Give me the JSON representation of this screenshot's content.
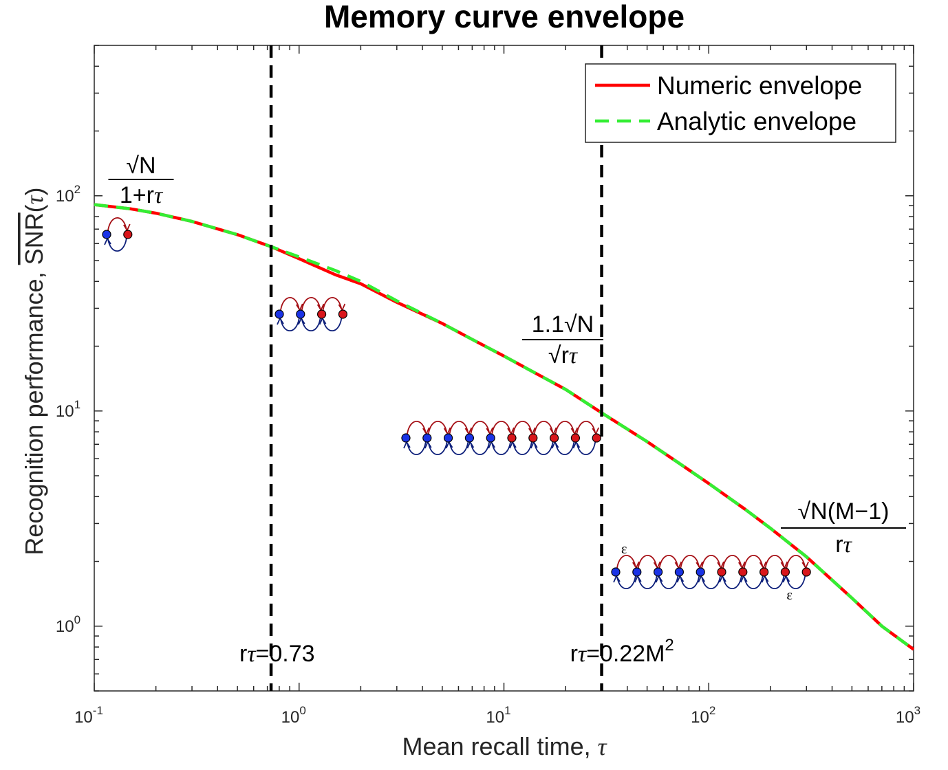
{
  "colors": {
    "numeric": "#ff0000",
    "analytic": "#33ee33",
    "threshold": "#000000",
    "state_plus": "#1a33e6",
    "state_minus": "#d9161b",
    "arrow_up": "#a50f15",
    "arrow_down": "#0d1f7a"
  },
  "chart_data": {
    "type": "line",
    "title": "Memory curve envelope",
    "xlabel": "Mean recall time, τ",
    "ylabel": "Recognition performance, SNR(τ)",
    "xscale": "log",
    "yscale": "log",
    "xlim": [
      0.1,
      1000
    ],
    "ylim": [
      0.5,
      500
    ],
    "grid": false,
    "legend_position": "top-right",
    "x_ticks": [
      {
        "base": "10",
        "exp": "-1"
      },
      {
        "base": "10",
        "exp": "0"
      },
      {
        "base": "10",
        "exp": "1"
      },
      {
        "base": "10",
        "exp": "2"
      },
      {
        "base": "10",
        "exp": "3"
      }
    ],
    "y_ticks": [
      {
        "base": "10",
        "exp": "0"
      },
      {
        "base": "10",
        "exp": "1"
      },
      {
        "base": "10",
        "exp": "2"
      }
    ],
    "series": [
      {
        "name": "Numeric envelope",
        "style": "solid",
        "x": [
          0.1,
          0.15,
          0.2,
          0.3,
          0.5,
          0.73,
          1.0,
          1.5,
          2,
          3,
          5,
          7,
          10,
          15,
          20,
          30,
          50,
          70,
          100,
          150,
          200,
          300,
          500,
          700,
          1000
        ],
        "y": [
          91,
          87,
          83,
          76,
          66,
          58,
          51,
          43,
          39,
          32,
          25.5,
          21.5,
          18,
          14.6,
          12.6,
          9.8,
          7.2,
          5.8,
          4.6,
          3.5,
          2.85,
          2.1,
          1.35,
          1.0,
          0.78
        ]
      },
      {
        "name": "Analytic envelope",
        "style": "dashed",
        "x": [
          0.1,
          0.15,
          0.2,
          0.3,
          0.5,
          0.73,
          1.0,
          1.5,
          2,
          3,
          5,
          7,
          10,
          15,
          20,
          30,
          50,
          70,
          100,
          150,
          200,
          300,
          500,
          700,
          1000
        ],
        "y": [
          91,
          87,
          83,
          76,
          66,
          58,
          52,
          45,
          40,
          32.5,
          25.5,
          21.5,
          18,
          14.6,
          12.6,
          9.8,
          7.2,
          5.8,
          4.6,
          3.5,
          2.85,
          2.1,
          1.35,
          1.0,
          0.78
        ]
      }
    ],
    "threshold_lines": [
      {
        "x": 0.73,
        "label_prefix": "r",
        "label_tau": "τ",
        "label_suffix": "=0.73",
        "label_sup": ""
      },
      {
        "x": 30,
        "label_prefix": "r",
        "label_tau": "τ",
        "label_suffix": "=0.22M",
        "label_sup": "2"
      }
    ],
    "formulas": [
      {
        "num": "√N",
        "den": "1+rτ"
      },
      {
        "num": "1.1√N",
        "den": "√rτ"
      },
      {
        "num": "√N(M−1)",
        "den": "rτ"
      }
    ],
    "epsilon": "ε",
    "chain_diagrams": [
      {
        "blue": 1,
        "red": 1,
        "epsilon": false
      },
      {
        "blue": 2,
        "red": 2,
        "epsilon": false
      },
      {
        "blue": 5,
        "red": 5,
        "epsilon": false
      },
      {
        "blue": 5,
        "red": 5,
        "epsilon": true
      }
    ]
  }
}
